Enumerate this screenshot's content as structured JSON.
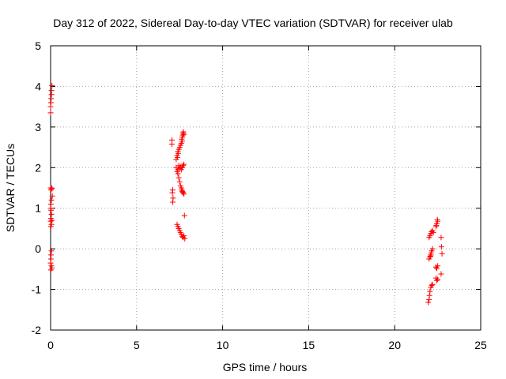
{
  "chart_data": {
    "type": "scatter",
    "title": "Day 312 of 2022, Sidereal Day-to-day VTEC variation (SDTVAR) for receiver ulab",
    "xlabel": "GPS time / hours",
    "ylabel": "SDTVAR / TECUs",
    "xlim": [
      0,
      25
    ],
    "ylim": [
      -2,
      5
    ],
    "xticks": [
      "0",
      "5",
      "10",
      "15",
      "20",
      "25"
    ],
    "yticks": [
      "-2",
      "-1",
      "0",
      "1",
      "2",
      "3",
      "4",
      "5"
    ],
    "grid": true,
    "marker": "plus",
    "color": "#ff0000",
    "series": [
      {
        "points": [
          [
            0.0,
            3.35
          ],
          [
            0.0,
            3.5
          ],
          [
            0.02,
            3.6
          ],
          [
            0.03,
            3.7
          ],
          [
            0.05,
            3.8
          ],
          [
            0.05,
            3.9
          ],
          [
            0.08,
            4.02
          ],
          [
            0.0,
            1.5
          ],
          [
            0.02,
            1.45
          ],
          [
            0.05,
            1.5
          ],
          [
            0.08,
            1.48
          ],
          [
            0.1,
            1.3
          ],
          [
            0.05,
            1.2
          ],
          [
            0.02,
            1.1
          ],
          [
            0.0,
            1.0
          ],
          [
            0.03,
            0.95
          ],
          [
            0.05,
            0.85
          ],
          [
            0.02,
            0.75
          ],
          [
            0.0,
            0.68
          ],
          [
            0.05,
            0.6
          ],
          [
            0.08,
            0.7
          ],
          [
            0.02,
            0.55
          ],
          [
            0.05,
            -0.05
          ],
          [
            0.03,
            -0.15
          ],
          [
            0.02,
            -0.25
          ],
          [
            0.0,
            -0.35
          ],
          [
            0.05,
            -0.42
          ],
          [
            0.08,
            -0.47
          ],
          [
            0.02,
            -0.52
          ],
          [
            7.05,
            2.68
          ],
          [
            7.05,
            2.58
          ],
          [
            7.1,
            1.45
          ],
          [
            7.08,
            1.38
          ],
          [
            7.12,
            1.25
          ],
          [
            7.1,
            1.15
          ],
          [
            7.3,
            2.2
          ],
          [
            7.35,
            2.3
          ],
          [
            7.4,
            2.4
          ],
          [
            7.45,
            2.45
          ],
          [
            7.5,
            2.5
          ],
          [
            7.55,
            2.55
          ],
          [
            7.42,
            2.35
          ],
          [
            7.38,
            2.25
          ],
          [
            7.3,
            2.0
          ],
          [
            7.35,
            1.9
          ],
          [
            7.4,
            1.95
          ],
          [
            7.45,
            2.05
          ],
          [
            7.5,
            1.98
          ],
          [
            7.55,
            2.02
          ],
          [
            7.6,
            1.95
          ],
          [
            7.65,
            2.0
          ],
          [
            7.7,
            2.05
          ],
          [
            7.75,
            2.08
          ],
          [
            7.4,
            1.85
          ],
          [
            7.45,
            1.75
          ],
          [
            7.5,
            1.65
          ],
          [
            7.55,
            1.55
          ],
          [
            7.6,
            1.5
          ],
          [
            7.62,
            1.45
          ],
          [
            7.65,
            1.42
          ],
          [
            7.7,
            1.38
          ],
          [
            7.75,
            1.35
          ],
          [
            7.68,
            1.4
          ],
          [
            7.6,
            2.6
          ],
          [
            7.62,
            2.7
          ],
          [
            7.65,
            2.75
          ],
          [
            7.68,
            2.8
          ],
          [
            7.7,
            2.85
          ],
          [
            7.72,
            2.88
          ],
          [
            7.75,
            2.82
          ],
          [
            7.65,
            2.65
          ],
          [
            7.35,
            0.6
          ],
          [
            7.4,
            0.55
          ],
          [
            7.45,
            0.5
          ],
          [
            7.5,
            0.45
          ],
          [
            7.55,
            0.4
          ],
          [
            7.6,
            0.35
          ],
          [
            7.65,
            0.3
          ],
          [
            7.7,
            0.28
          ],
          [
            7.75,
            0.32
          ],
          [
            7.8,
            0.25
          ],
          [
            7.78,
            0.82
          ],
          [
            21.95,
            -1.32
          ],
          [
            22.0,
            -1.25
          ],
          [
            22.02,
            -1.15
          ],
          [
            22.05,
            -1.05
          ],
          [
            22.1,
            -0.95
          ],
          [
            22.15,
            -0.9
          ],
          [
            22.2,
            -0.88
          ],
          [
            22.0,
            -0.25
          ],
          [
            22.05,
            -0.2
          ],
          [
            22.1,
            -0.15
          ],
          [
            22.12,
            -0.1
          ],
          [
            22.15,
            -0.05
          ],
          [
            22.2,
            0.0
          ],
          [
            22.08,
            -0.18
          ],
          [
            22.0,
            0.28
          ],
          [
            22.05,
            0.32
          ],
          [
            22.1,
            0.38
          ],
          [
            22.15,
            0.42
          ],
          [
            22.2,
            0.45
          ],
          [
            22.25,
            0.4
          ],
          [
            22.4,
            0.55
          ],
          [
            22.45,
            0.62
          ],
          [
            22.5,
            0.68
          ],
          [
            22.48,
            0.72
          ],
          [
            22.42,
            0.58
          ],
          [
            22.4,
            -0.45
          ],
          [
            22.45,
            -0.48
          ],
          [
            22.5,
            -0.42
          ],
          [
            22.4,
            -0.72
          ],
          [
            22.45,
            -0.78
          ],
          [
            22.5,
            -0.75
          ],
          [
            22.7,
            0.28
          ],
          [
            22.72,
            0.05
          ],
          [
            22.75,
            -0.12
          ],
          [
            22.7,
            -0.62
          ]
        ]
      }
    ]
  }
}
